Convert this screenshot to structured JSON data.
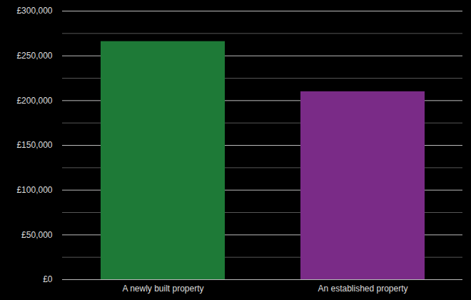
{
  "chart_data": {
    "type": "bar",
    "categories": [
      "A newly built property",
      "An established property"
    ],
    "values": [
      266000,
      210000
    ],
    "colors": [
      "#1e7a37",
      "#7a2b87"
    ],
    "ylim": [
      0,
      300000
    ],
    "yticks": [
      {
        "value": 0,
        "label": "£0"
      },
      {
        "value": 50000,
        "label": "£50,000"
      },
      {
        "value": 100000,
        "label": "£100,000"
      },
      {
        "value": 150000,
        "label": "£150,000"
      },
      {
        "value": 200000,
        "label": "£200,000"
      },
      {
        "value": 250000,
        "label": "£250,000"
      },
      {
        "value": 300000,
        "label": "£300,000"
      }
    ],
    "grid": true
  }
}
